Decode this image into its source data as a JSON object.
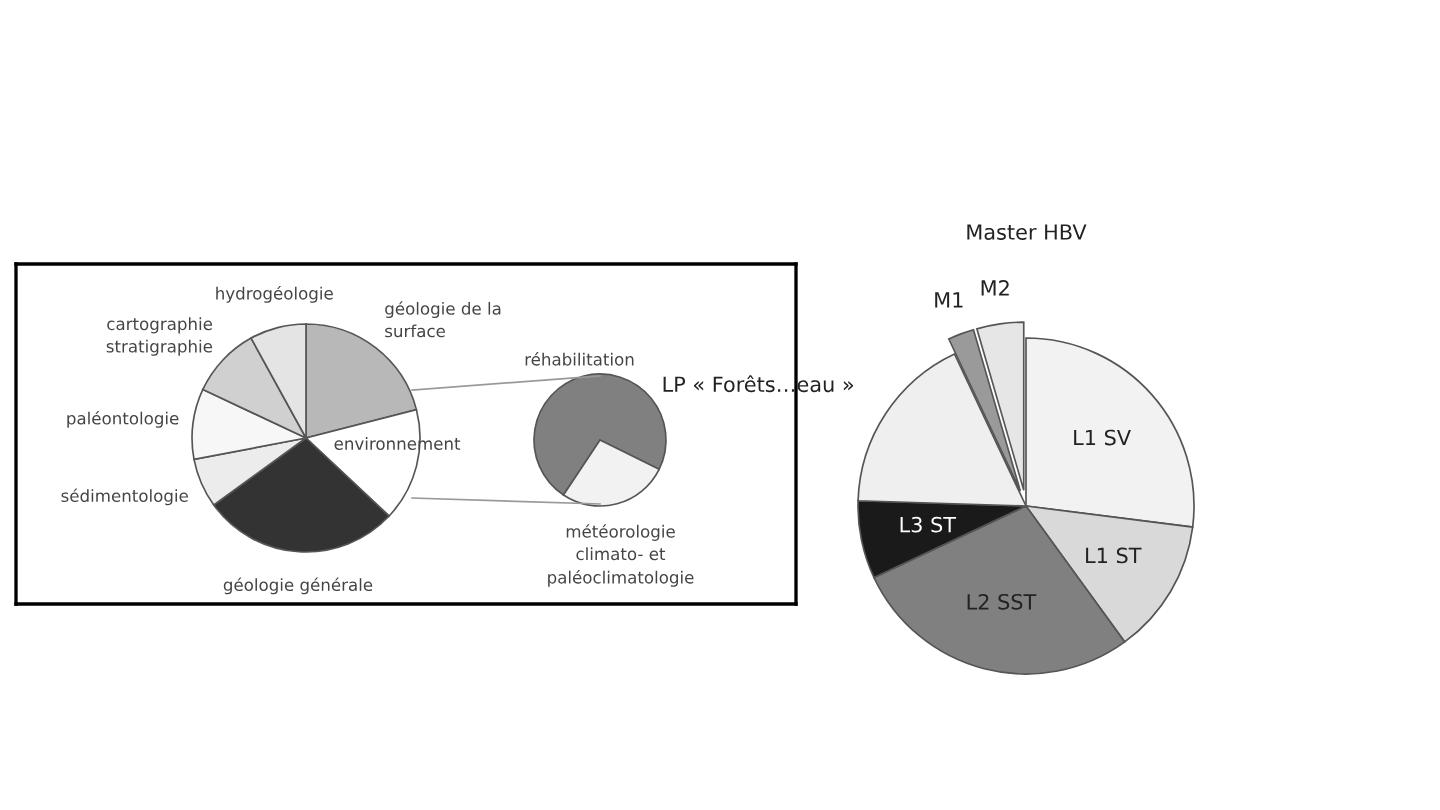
{
  "chart_data": [
    {
      "type": "pie",
      "categories": [
        "géologie de la\nsurface",
        "environnement",
        "géologie générale",
        "sédimentologie",
        "paléontologie",
        "cartographie\nstratigraphie",
        "hydrogéologie"
      ],
      "values": [
        21,
        16,
        28,
        7,
        10,
        10,
        8
      ],
      "colors": [
        "#b8b8b8",
        "#ffffff",
        "#333333",
        "#ececec",
        "#f7f7f7",
        "#d0d0d0",
        "#e4e4e4"
      ],
      "legend": false
    },
    {
      "type": "pie",
      "categories": [
        "réhabilitation",
        "météorologie\nclimato- et\npaléoclimatologie"
      ],
      "values": [
        73,
        27
      ],
      "colors": [
        "#808080",
        "#f2f2f2"
      ],
      "legend": false
    },
    {
      "type": "pie",
      "categories": [
        "L1 SV",
        "L1 ST",
        "L2 SST",
        "L3 ST",
        "LP « Forêts…eau »",
        "M1",
        "M2"
      ],
      "values": [
        27,
        13,
        28,
        7.5,
        17.5,
        2.5,
        4.5
      ],
      "colors": [
        "#f2f2f2",
        "#d9d9d9",
        "#808080",
        "#1a1a1a",
        "#efefef",
        "#9a9a9a",
        "#e6e6e6"
      ],
      "annotations": [
        "Master HBV"
      ],
      "legend": false
    }
  ]
}
